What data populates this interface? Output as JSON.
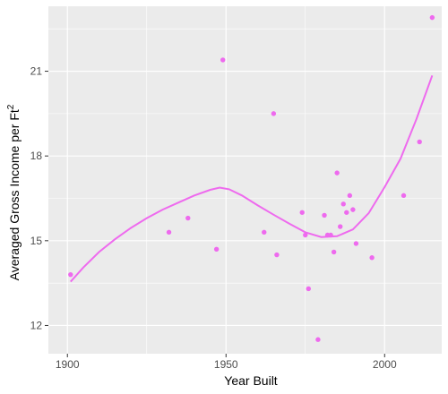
{
  "chart_data": {
    "type": "scatter",
    "xlabel": "Year Built",
    "ylabel": "Averaged Gross Income per Ft",
    "ylabel_superscript": "2",
    "xlim": [
      1894,
      2018
    ],
    "ylim": [
      11.0,
      23.3
    ],
    "x_ticks": [
      1900,
      1950,
      2000
    ],
    "y_ticks": [
      12,
      15,
      18,
      21
    ],
    "grid": true,
    "legend": "none",
    "colors": {
      "panel": "#EBEBEB",
      "grid": "#FFFFFF",
      "point": "#EE6AEE",
      "smooth": "#EE6AEE",
      "tick_mark": "#333333"
    },
    "points": [
      {
        "x": 1901,
        "y": 13.8
      },
      {
        "x": 1932,
        "y": 15.3
      },
      {
        "x": 1938,
        "y": 15.8
      },
      {
        "x": 1947,
        "y": 14.7
      },
      {
        "x": 1949,
        "y": 21.4
      },
      {
        "x": 1962,
        "y": 15.3
      },
      {
        "x": 1965,
        "y": 19.5
      },
      {
        "x": 1966,
        "y": 14.5
      },
      {
        "x": 1974,
        "y": 16.0
      },
      {
        "x": 1975,
        "y": 15.2
      },
      {
        "x": 1976,
        "y": 13.3
      },
      {
        "x": 1979,
        "y": 11.5
      },
      {
        "x": 1981,
        "y": 15.9
      },
      {
        "x": 1982,
        "y": 15.2
      },
      {
        "x": 1983,
        "y": 15.2
      },
      {
        "x": 1984,
        "y": 14.6
      },
      {
        "x": 1985,
        "y": 17.4
      },
      {
        "x": 1986,
        "y": 15.5
      },
      {
        "x": 1987,
        "y": 16.3
      },
      {
        "x": 1988,
        "y": 16.0
      },
      {
        "x": 1989,
        "y": 16.6
      },
      {
        "x": 1990,
        "y": 16.1
      },
      {
        "x": 1991,
        "y": 14.9
      },
      {
        "x": 1996,
        "y": 14.4
      },
      {
        "x": 2006,
        "y": 16.6
      },
      {
        "x": 2011,
        "y": 18.5
      },
      {
        "x": 2015,
        "y": 22.9
      }
    ],
    "smooth": [
      {
        "x": 1901,
        "y": 13.55
      },
      {
        "x": 1905,
        "y": 14.05
      },
      {
        "x": 1910,
        "y": 14.6
      },
      {
        "x": 1915,
        "y": 15.05
      },
      {
        "x": 1920,
        "y": 15.45
      },
      {
        "x": 1925,
        "y": 15.8
      },
      {
        "x": 1930,
        "y": 16.1
      },
      {
        "x": 1935,
        "y": 16.35
      },
      {
        "x": 1940,
        "y": 16.6
      },
      {
        "x": 1945,
        "y": 16.8
      },
      {
        "x": 1948,
        "y": 16.88
      },
      {
        "x": 1951,
        "y": 16.82
      },
      {
        "x": 1955,
        "y": 16.6
      },
      {
        "x": 1960,
        "y": 16.25
      },
      {
        "x": 1965,
        "y": 15.92
      },
      {
        "x": 1970,
        "y": 15.6
      },
      {
        "x": 1975,
        "y": 15.3
      },
      {
        "x": 1980,
        "y": 15.13
      },
      {
        "x": 1985,
        "y": 15.16
      },
      {
        "x": 1990,
        "y": 15.4
      },
      {
        "x": 1995,
        "y": 15.98
      },
      {
        "x": 2000,
        "y": 16.9
      },
      {
        "x": 2005,
        "y": 17.9
      },
      {
        "x": 2010,
        "y": 19.3
      },
      {
        "x": 2015,
        "y": 20.85
      }
    ]
  }
}
